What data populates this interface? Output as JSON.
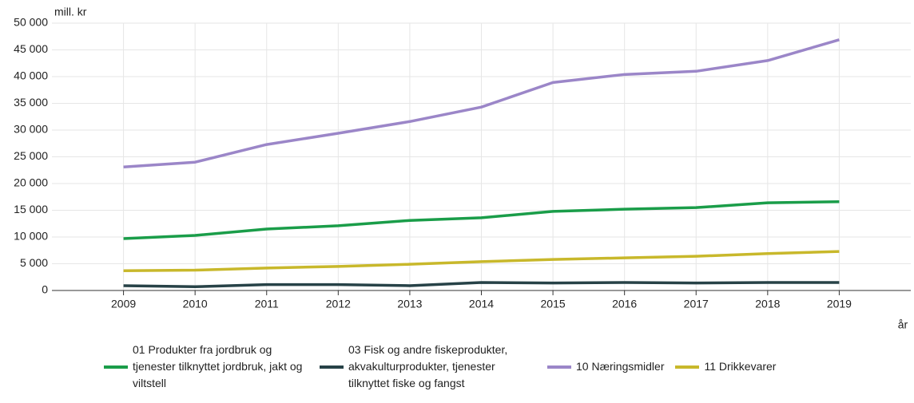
{
  "chart_data": {
    "type": "line",
    "y_label": "mill. kr",
    "x_label": "år",
    "x": [
      2009,
      2010,
      2011,
      2012,
      2013,
      2014,
      2015,
      2016,
      2017,
      2018,
      2019
    ],
    "xlim": [
      2008,
      2020
    ],
    "xticks": [
      2009,
      2010,
      2011,
      2012,
      2013,
      2014,
      2015,
      2016,
      2017,
      2018,
      2019
    ],
    "ylim": [
      0,
      50000
    ],
    "yticks": [
      0,
      {
        "value": 5000,
        "label": "5 000"
      },
      {
        "value": 10000,
        "label": "10 000"
      },
      {
        "value": 15000,
        "label": "15 000"
      },
      {
        "value": 20000,
        "label": "20 000"
      },
      {
        "value": 25000,
        "label": "25 000"
      },
      {
        "value": 30000,
        "label": "30 000"
      },
      {
        "value": 35000,
        "label": "35 000"
      },
      {
        "value": 40000,
        "label": "40 000"
      },
      {
        "value": 45000,
        "label": "45 000"
      },
      {
        "value": 50000,
        "label": "50 000"
      }
    ],
    "grid": true,
    "legend": "bottom",
    "series": [
      {
        "name": "01 Produkter fra jordbruk og tjenester tilknyttet jordbruk, jakt og viltstell",
        "color": "#1a9d49",
        "values": [
          9700,
          10300,
          11500,
          12100,
          13100,
          13600,
          14800,
          15200,
          15500,
          16400,
          16600
        ]
      },
      {
        "name": "03 Fisk og andre fiskeprodukter, akvakulturprodukter, tjenester tilknyttet fiske og fangst",
        "color": "#274247",
        "values": [
          900,
          700,
          1100,
          1100,
          900,
          1500,
          1400,
          1500,
          1400,
          1500,
          1500
        ]
      },
      {
        "name": "10 Næringsmidler",
        "color": "#9b86c8",
        "values": [
          23100,
          24000,
          27300,
          29400,
          31600,
          34300,
          38900,
          40400,
          41000,
          43000,
          46900
        ]
      },
      {
        "name": "11 Drikkevarer",
        "color": "#c8b82b",
        "values": [
          3700,
          3800,
          4200,
          4500,
          4900,
          5400,
          5800,
          6100,
          6400,
          6900,
          7300
        ]
      }
    ]
  }
}
